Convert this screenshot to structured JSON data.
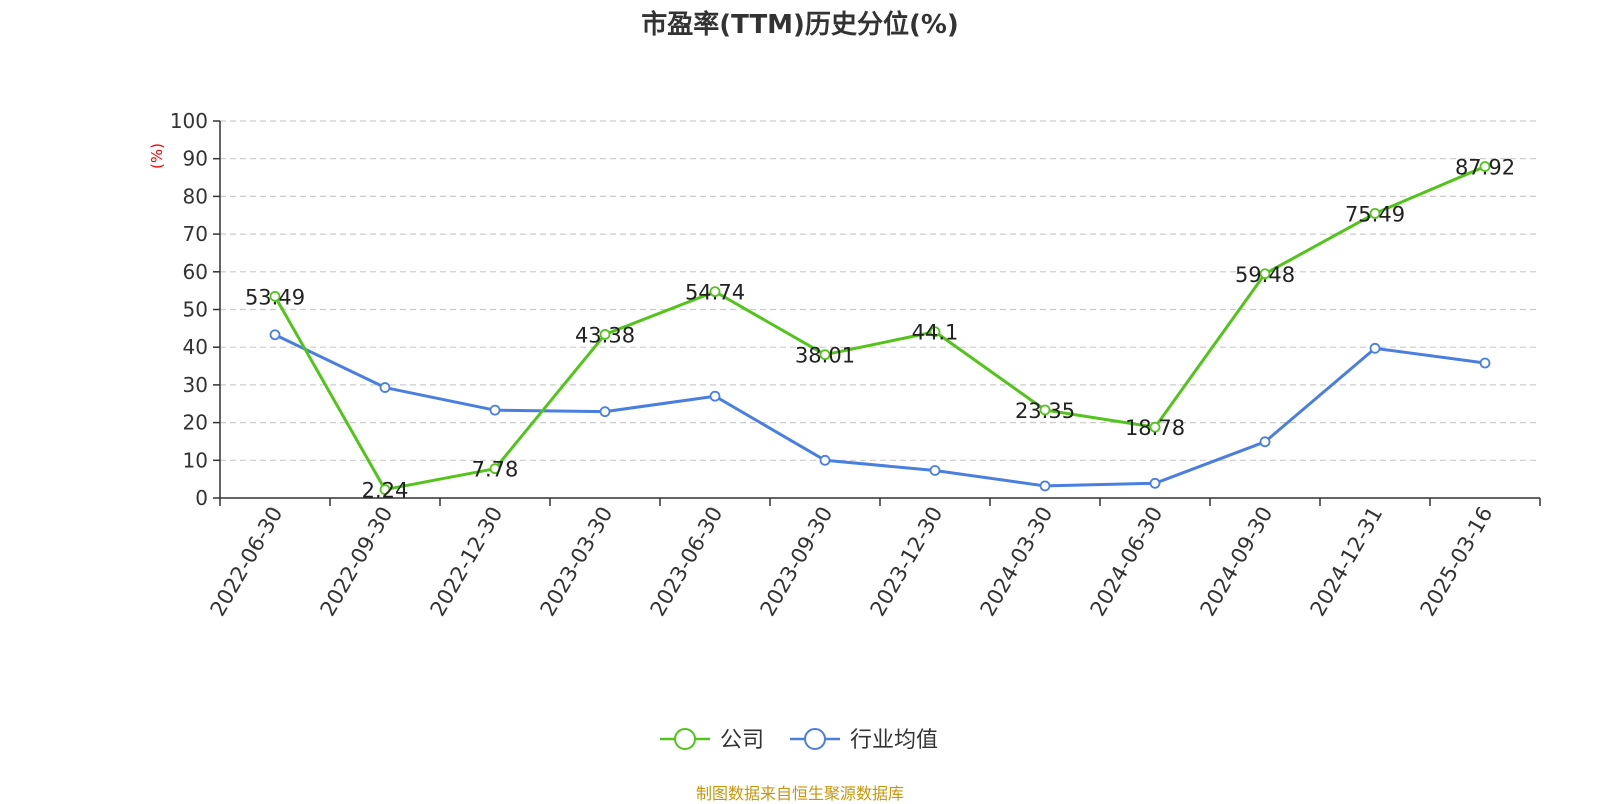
{
  "chart_data": {
    "type": "line",
    "title": "市盈率(TTM)历史分位(%)",
    "ylabel": "(%)",
    "xlabel": "",
    "ylim": [
      0,
      100
    ],
    "yticks": [
      0,
      10,
      20,
      30,
      40,
      50,
      60,
      70,
      80,
      90,
      100
    ],
    "grid": true,
    "legend_position": "bottom-center",
    "categories": [
      "2022-06-30",
      "2022-09-30",
      "2022-12-30",
      "2023-03-30",
      "2023-06-30",
      "2023-09-30",
      "2023-12-30",
      "2024-03-30",
      "2024-06-30",
      "2024-09-30",
      "2024-12-31",
      "2025-03-16"
    ],
    "series": [
      {
        "name": "公司",
        "color": "#52c41a",
        "values": [
          53.49,
          2.24,
          7.78,
          43.38,
          54.74,
          38.01,
          44.1,
          23.35,
          18.78,
          59.48,
          75.49,
          87.92
        ],
        "labels": [
          "53.49",
          "2.24",
          "7.78",
          "43.38",
          "54.74",
          "38.01",
          "44.1",
          "23.35",
          "18.78",
          "59.48",
          "75.49",
          "87.92"
        ]
      },
      {
        "name": "行业均值",
        "color": "#4a7fe0",
        "values": [
          43.3,
          29.3,
          23.3,
          22.9,
          27.0,
          10.0,
          7.3,
          3.2,
          3.9,
          14.9,
          39.7,
          35.8
        ]
      }
    ]
  },
  "source": "制图数据来自恒生聚源数据库"
}
